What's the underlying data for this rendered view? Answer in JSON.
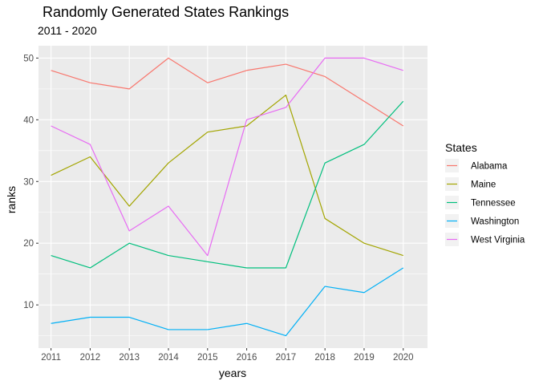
{
  "chart_data": {
    "type": "line",
    "title": "Randomly Generated States Rankings",
    "subtitle": "2011 - 2020",
    "xlabel": "years",
    "ylabel": "ranks",
    "x": [
      2011,
      2012,
      2013,
      2014,
      2015,
      2016,
      2017,
      2018,
      2019,
      2020
    ],
    "xlim": [
      2010.68,
      2020.62
    ],
    "ylim": [
      3.0,
      52.0
    ],
    "yticks": [
      10,
      20,
      30,
      40,
      50
    ],
    "grid": true,
    "legend_title": "States",
    "legend_position": "right",
    "series": [
      {
        "name": "Alabama",
        "color": "#F8766D",
        "values": [
          48,
          46,
          45,
          50,
          46,
          48,
          49,
          47,
          43,
          39
        ]
      },
      {
        "name": "Maine",
        "color": "#A3A500",
        "values": [
          31,
          34,
          26,
          33,
          38,
          39,
          44,
          24,
          20,
          18
        ]
      },
      {
        "name": "Tennessee",
        "color": "#00BF7D",
        "values": [
          18,
          16,
          20,
          18,
          17,
          16,
          16,
          33,
          36,
          43
        ]
      },
      {
        "name": "Washington",
        "color": "#00B0F6",
        "values": [
          7,
          8,
          8,
          6,
          6,
          7,
          5,
          13,
          12,
          16
        ]
      },
      {
        "name": "West Virginia",
        "color": "#E76BF3",
        "values": [
          39,
          36,
          22,
          26,
          18,
          40,
          42,
          50,
          50,
          48
        ]
      }
    ]
  }
}
